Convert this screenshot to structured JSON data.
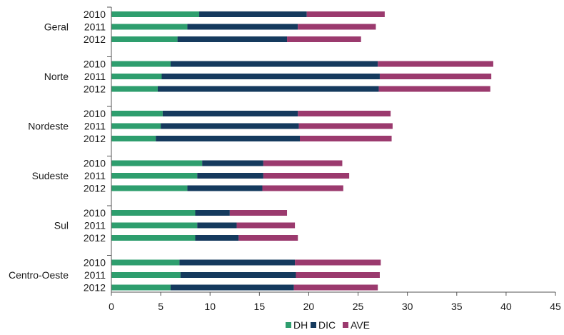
{
  "chart_data": {
    "type": "bar",
    "orientation": "horizontal",
    "stacked": true,
    "title": "",
    "xlabel": "",
    "ylabel": "",
    "xlim": [
      0,
      45
    ],
    "x_ticks": [
      0,
      5,
      10,
      15,
      20,
      25,
      30,
      35,
      40,
      45
    ],
    "grid": false,
    "legend_position": "bottom",
    "series_names": [
      "DH",
      "DIC",
      "AVE"
    ],
    "colors": {
      "DH": "#2e9e6e",
      "DIC": "#153a5e",
      "AVE": "#9b3a6e"
    },
    "groups": [
      {
        "name": "Geral",
        "bars": [
          {
            "year": "2010",
            "values": [
              8.9,
              10.9,
              7.9
            ]
          },
          {
            "year": "2011",
            "values": [
              7.7,
              11.2,
              7.9
            ]
          },
          {
            "year": "2012",
            "values": [
              6.7,
              11.1,
              7.5
            ]
          }
        ]
      },
      {
        "name": "Norte",
        "bars": [
          {
            "year": "2010",
            "values": [
              6.0,
              21.0,
              11.7
            ]
          },
          {
            "year": "2011",
            "values": [
              5.1,
              22.1,
              11.3
            ]
          },
          {
            "year": "2012",
            "values": [
              4.7,
              22.4,
              11.3
            ]
          }
        ]
      },
      {
        "name": "Nordeste",
        "bars": [
          {
            "year": "2010",
            "values": [
              5.2,
              13.7,
              9.4
            ]
          },
          {
            "year": "2011",
            "values": [
              5.0,
              14.0,
              9.5
            ]
          },
          {
            "year": "2012",
            "values": [
              4.5,
              14.6,
              9.3
            ]
          }
        ]
      },
      {
        "name": "Sudeste",
        "bars": [
          {
            "year": "2010",
            "values": [
              9.2,
              6.2,
              8.0
            ]
          },
          {
            "year": "2011",
            "values": [
              8.7,
              6.7,
              8.7
            ]
          },
          {
            "year": "2012",
            "values": [
              7.7,
              7.6,
              8.2
            ]
          }
        ]
      },
      {
        "name": "Sul",
        "bars": [
          {
            "year": "2010",
            "values": [
              8.5,
              3.5,
              5.8
            ]
          },
          {
            "year": "2011",
            "values": [
              8.7,
              4.0,
              5.9
            ]
          },
          {
            "year": "2012",
            "values": [
              8.5,
              4.4,
              6.0
            ]
          }
        ]
      },
      {
        "name": "Centro-Oeste",
        "bars": [
          {
            "year": "2010",
            "values": [
              6.9,
              11.7,
              8.7
            ]
          },
          {
            "year": "2011",
            "values": [
              7.0,
              11.7,
              8.5
            ]
          },
          {
            "year": "2012",
            "values": [
              6.0,
              12.5,
              8.5
            ]
          }
        ]
      }
    ]
  }
}
